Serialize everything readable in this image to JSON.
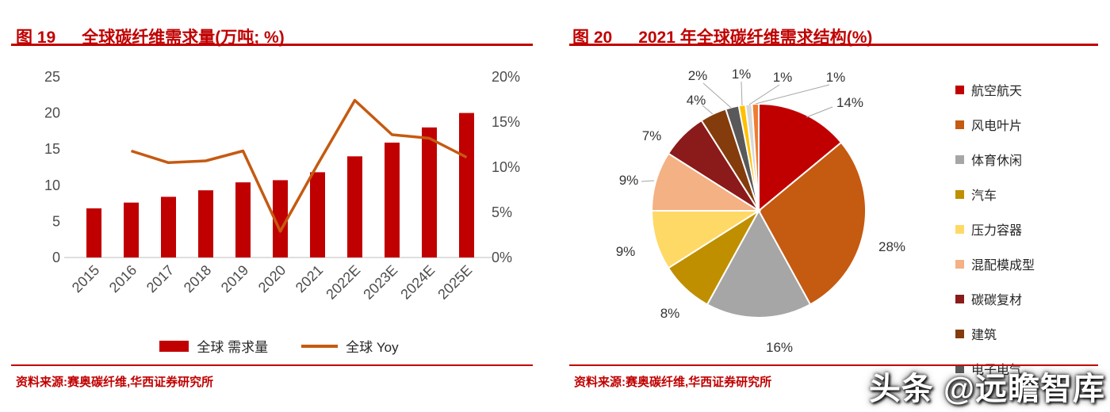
{
  "accent_color": "#c00000",
  "watermark": {
    "text": "头条 @远瞻智库"
  },
  "fig19": {
    "number": "图 19",
    "title": "全球碳纤维需求量(万吨; %)",
    "source": "资料来源:赛奥碳纤维,华西证券研究所",
    "chart_data": {
      "type": "bar",
      "categories": [
        "2015",
        "2016",
        "2017",
        "2018",
        "2019",
        "2020",
        "2021",
        "2022E",
        "2023E",
        "2024E",
        "2025E"
      ],
      "series": [
        {
          "name": "全球 需求量",
          "type": "bar",
          "axis": "left",
          "color": "#c00000",
          "values": [
            6.8,
            7.6,
            8.4,
            9.3,
            10.4,
            10.7,
            11.8,
            14,
            15.9,
            18,
            20
          ]
        },
        {
          "name": "全球 Yoy",
          "type": "line",
          "axis": "right",
          "color": "#c55a11",
          "values": [
            null,
            11.8,
            10.5,
            10.7,
            11.8,
            2.9,
            10.3,
            17.4,
            13.6,
            13.2,
            11.1
          ]
        }
      ],
      "left_axis": {
        "min": 0,
        "max": 25,
        "tick_values": [
          0,
          5,
          10,
          15,
          20,
          25
        ],
        "tick_labels": [
          "0",
          "5",
          "10",
          "15",
          "20",
          "25"
        ]
      },
      "right_axis": {
        "min": 0,
        "max": 20,
        "tick_values": [
          0,
          5,
          10,
          15,
          20
        ],
        "tick_labels": [
          "0%",
          "5%",
          "10%",
          "15%",
          "20%"
        ]
      },
      "grid": false,
      "legend_position": "bottom"
    }
  },
  "fig20": {
    "number": "图 20",
    "title": "2021 年全球碳纤维需求结构(%)",
    "source": "资料来源:赛奥碳纤维,华西证券研究所",
    "chart_data": {
      "type": "pie",
      "slices": [
        {
          "label": "航空航天",
          "value": 14,
          "color": "#c00000"
        },
        {
          "label": "风电叶片",
          "value": 28,
          "color": "#c55a11"
        },
        {
          "label": "体育休闲",
          "value": 16,
          "color": "#a6a6a6"
        },
        {
          "label": "汽车",
          "value": 8,
          "color": "#bf8f00"
        },
        {
          "label": "压力容器",
          "value": 9,
          "color": "#ffd966"
        },
        {
          "label": "混配模成型",
          "value": 9,
          "color": "#f4b183"
        },
        {
          "label": "碳碳复材",
          "value": 7,
          "color": "#8b1a1a"
        },
        {
          "label": "建筑",
          "value": 4,
          "color": "#843c0c"
        },
        {
          "label": "电子电气",
          "value": 2,
          "color": "#595959"
        },
        {
          "label": "",
          "value": 1,
          "color": "#ffc000"
        },
        {
          "label": "",
          "value": 1,
          "color": "#d9d9d9"
        },
        {
          "label": "",
          "value": 1,
          "color": "#ed7d31"
        }
      ],
      "legend_position": "right"
    }
  }
}
